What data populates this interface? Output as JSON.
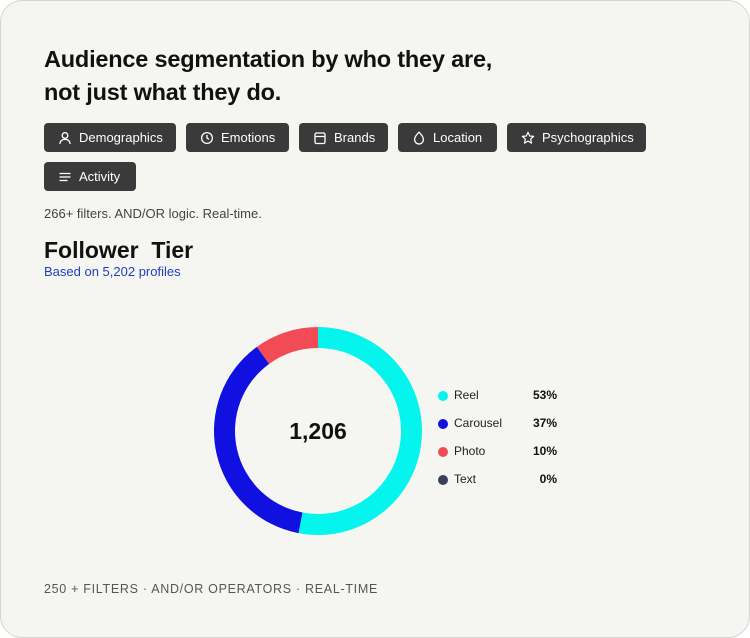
{
  "headline": {
    "line1": "Audience segmentation by who they are,",
    "line2": "not just what they do."
  },
  "filter_chips": [
    {
      "label": "Demographics",
      "icon": "user-icon"
    },
    {
      "label": "Emotions",
      "icon": "clock-icon"
    },
    {
      "label": "Brands",
      "icon": "calendar-icon"
    },
    {
      "label": "Location",
      "icon": "drop-icon"
    },
    {
      "label": "Psychographics",
      "icon": "star-icon"
    },
    {
      "label": "Activity",
      "icon": "menu-lines-icon"
    }
  ],
  "filters_note": "266+ filters. AND/OR logic. Real-time.",
  "section": {
    "title": "Follower  Tier",
    "subtitle": "Based on 5,202 profiles"
  },
  "chart_data": {
    "type": "pie",
    "center_label": "1,206",
    "series": [
      {
        "name": "Reel",
        "value": 53,
        "display": "53%",
        "color": "#06f4ee"
      },
      {
        "name": "Carousel",
        "value": 37,
        "display": "37%",
        "color": "#1010e0"
      },
      {
        "name": "Photo",
        "value": 10,
        "display": "10%",
        "color": "#f24b55"
      },
      {
        "name": "Text",
        "value": 0,
        "display": "0%",
        "color": "#3a3f5c"
      }
    ],
    "legend_position": "right"
  },
  "footer": "250 + FILTERS · AND/OR OPERATORS · REAL-TIME"
}
